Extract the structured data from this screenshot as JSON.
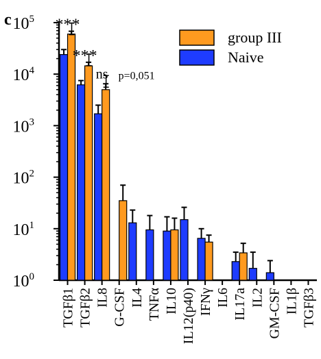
{
  "panel_label": "c",
  "chart_data": {
    "type": "bar",
    "scale": "log",
    "ylim": [
      1,
      100000
    ],
    "yticks": [
      {
        "value": 1,
        "base": "10",
        "exp": "0"
      },
      {
        "value": 10,
        "base": "10",
        "exp": "1"
      },
      {
        "value": 100,
        "base": "10",
        "exp": "2"
      },
      {
        "value": 1000,
        "base": "10",
        "exp": "3"
      },
      {
        "value": 10000,
        "base": "10",
        "exp": "4"
      },
      {
        "value": 100000,
        "base": "10",
        "exp": "5"
      }
    ],
    "categories": [
      "TGFβ1",
      "TGFβ2",
      "IL8",
      "G-CSF",
      "IL4",
      "TNFα",
      "IL10",
      "IL12(p40)",
      "IFNγ",
      "IL6",
      "IL17a",
      "IL2",
      "GM-CSF",
      "IL1β",
      "TGFβ3"
    ],
    "legend_position": "top-right",
    "series": [
      {
        "name": "group III",
        "color": "#FF9A1F",
        "values": [
          60000,
          14500,
          5000,
          35,
          null,
          null,
          9.5,
          null,
          5.5,
          null,
          3.4,
          null,
          null,
          null,
          null
        ],
        "errors": [
          68000,
          17000,
          6500,
          70,
          null,
          null,
          16,
          null,
          7.5,
          null,
          5.2,
          null,
          null,
          null,
          null
        ]
      },
      {
        "name": "Naive",
        "color": "#1E3CFF",
        "values": [
          24000,
          6200,
          1700,
          null,
          13,
          9.5,
          9,
          15,
          6.5,
          null,
          2.3,
          1.7,
          1.4,
          null,
          null
        ],
        "errors": [
          30000,
          7500,
          2500,
          null,
          23,
          18,
          17,
          26,
          10,
          null,
          3.5,
          3.5,
          2.4,
          null,
          null
        ]
      }
    ],
    "annotations": [
      {
        "category": "TGFβ1",
        "text": "***",
        "top": 68000
      },
      {
        "category": "TGFβ2",
        "text": "***",
        "top": 17000
      },
      {
        "category": "IL8",
        "text": "ns",
        "top": 6500,
        "note": "p=0,051"
      }
    ]
  }
}
